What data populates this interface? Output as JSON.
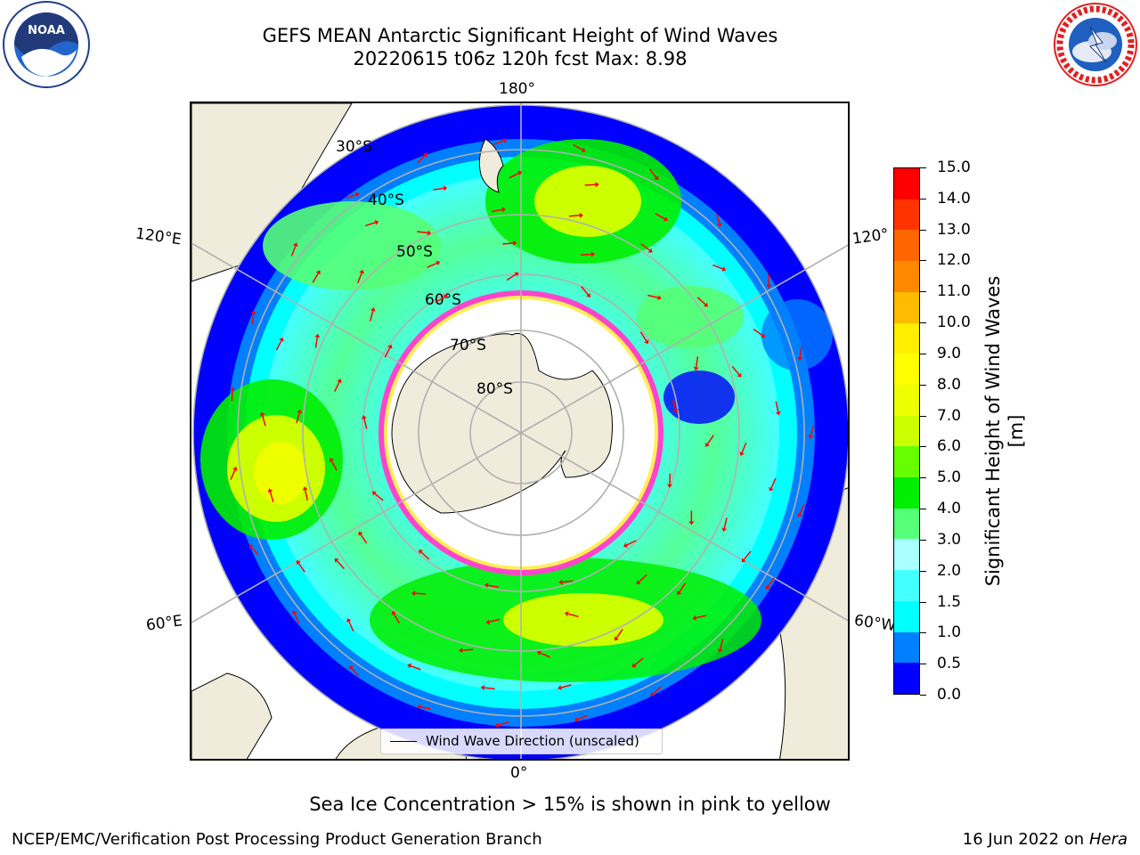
{
  "title": {
    "line1": "GEFS MEAN Antarctic Significant Height of Wind Waves",
    "line2": "20220615 t06z 120h fcst   Max: 8.98"
  },
  "logos": {
    "left": "NOAA",
    "right": "NATIONAL WEATHER SERVICE"
  },
  "map": {
    "projection": "south-polar-stereographic",
    "lon_labels": [
      "180°",
      "120°E",
      "120°",
      "60°E",
      "60°W",
      "0°"
    ],
    "lat_labels": [
      "30°S",
      "40°S",
      "50°S",
      "60°S",
      "70°S",
      "80°S"
    ],
    "arrow_color": "#ff0000",
    "land_color": "#efecdc",
    "grid_color": "#b0b0b0",
    "ice_edge_colors": [
      "#ff44cc",
      "#ffaa22",
      "#ffee55"
    ]
  },
  "legend": {
    "label": "Wind Wave Direction (unscaled)"
  },
  "colorbar": {
    "label": "Significant Height of Wind Waves [m]",
    "ticks": [
      "0.0",
      "0.5",
      "1.0",
      "1.5",
      "2.0",
      "3.0",
      "4.0",
      "5.0",
      "6.0",
      "7.0",
      "8.0",
      "9.0",
      "10.0",
      "11.0",
      "12.0",
      "13.0",
      "14.0",
      "15.0"
    ],
    "colors": [
      "#0000ff",
      "#0080ff",
      "#00ffff",
      "#44ffff",
      "#aaffff",
      "#55ff77",
      "#00ee00",
      "#66ff00",
      "#ccff00",
      "#eeff00",
      "#ffff00",
      "#ffee00",
      "#ffbb00",
      "#ff8800",
      "#ff6600",
      "#ff3300",
      "#ff0000"
    ]
  },
  "footnote": "Sea Ice Concentration > 15% is shown in pink to yellow",
  "credit": "NCEP/EMC/Verification Post Processing Product Generation Branch",
  "date": {
    "text": "16 Jun 2022 on",
    "host": "Hera"
  }
}
